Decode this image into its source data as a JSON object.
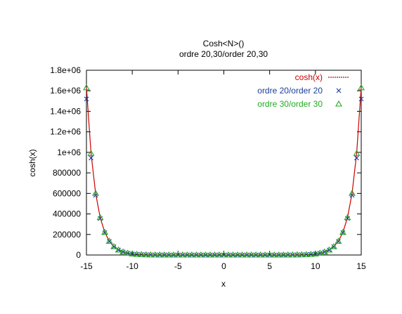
{
  "chart_data": {
    "type": "line",
    "title": "Cosh<N>()",
    "subtitle": "ordre 20,30/order 20,30",
    "xlabel": "x",
    "ylabel": "cosh(x)",
    "xlim": [
      -15,
      15
    ],
    "ylim": [
      0,
      1800000
    ],
    "xticks": [
      -15,
      -10,
      -5,
      0,
      5,
      10,
      15
    ],
    "xtick_labels": [
      "-15",
      "-10",
      "-5",
      "0",
      "5",
      "10",
      "15"
    ],
    "yticks": [
      0,
      200000,
      400000,
      600000,
      800000,
      1000000,
      1200000,
      1400000,
      1600000,
      1800000
    ],
    "ytick_labels": [
      "0",
      "200000",
      "400000",
      "600000",
      "800000",
      "1e+06",
      "1.2e+06",
      "1.4e+06",
      "1.6e+06",
      "1.8e+06"
    ],
    "grid": false,
    "legend_position": "top-right",
    "series": [
      {
        "name": "cosh(x)",
        "style": "line",
        "color": "#cc0000",
        "x": [
          -15,
          -14.5,
          -14,
          -13.5,
          -13,
          -12.5,
          -12,
          -11.5,
          -11,
          -10.5,
          -10,
          -9.5,
          -9,
          -8,
          -7,
          -6,
          -5,
          -4,
          -3,
          -2,
          -1,
          0,
          1,
          2,
          3,
          4,
          5,
          6,
          7,
          8,
          9,
          9.5,
          10,
          10.5,
          11,
          11.5,
          12,
          12.5,
          13,
          13.5,
          14,
          14.5,
          15
        ],
        "y": [
          1634508,
          991380,
          601302,
          364708,
          221206,
          134170,
          81377,
          49358,
          29937,
          18157,
          11013,
          6680,
          4052,
          1490,
          548,
          202,
          74,
          27,
          10,
          4,
          2,
          1,
          2,
          4,
          10,
          27,
          74,
          202,
          548,
          1490,
          4052,
          6680,
          11013,
          18157,
          29937,
          49358,
          81377,
          134170,
          221206,
          364708,
          601302,
          991380,
          1634508
        ]
      },
      {
        "name": "ordre 20/order 20",
        "style": "points",
        "marker": "x",
        "color": "#1a3d99",
        "x": [
          -15,
          -14.5,
          -14,
          -13.5,
          -13,
          -12.5,
          -12,
          -11.5,
          -11,
          -10.5,
          -10,
          -9.5,
          -9,
          -8.5,
          -8,
          -7.5,
          -7,
          -6.5,
          -6,
          -5.5,
          -5,
          -4.5,
          -4,
          -3.5,
          -3,
          -2.5,
          -2,
          -1.5,
          -1,
          -0.5,
          0,
          0.5,
          1,
          1.5,
          2,
          2.5,
          3,
          3.5,
          4,
          4.5,
          5,
          5.5,
          6,
          6.5,
          7,
          7.5,
          8,
          8.5,
          9,
          9.5,
          10,
          10.5,
          11,
          11.5,
          12,
          12.5,
          13,
          13.5,
          14,
          14.5,
          15
        ],
        "y": [
          1520000,
          945000,
          582000,
          356000,
          217000,
          132000,
          80400,
          48900,
          29700,
          18060,
          10980,
          6670,
          4050,
          2460,
          1490,
          905,
          548,
          333,
          202,
          122,
          74,
          45,
          27,
          17,
          10,
          6,
          4,
          2,
          2,
          1,
          1,
          1,
          2,
          2,
          4,
          6,
          10,
          17,
          27,
          45,
          74,
          122,
          202,
          333,
          548,
          905,
          1490,
          2460,
          4050,
          6670,
          10980,
          18060,
          29700,
          48900,
          80400,
          132000,
          217000,
          356000,
          582000,
          945000,
          1520000
        ]
      },
      {
        "name": "ordre 30/order 30",
        "style": "points",
        "marker": "triangle",
        "color": "#22aa22",
        "x": [
          -15,
          -14.5,
          -14,
          -13.5,
          -13,
          -12.5,
          -12,
          -11.5,
          -11,
          -10.5,
          -10,
          -9.5,
          -9,
          -8.5,
          -8,
          -7.5,
          -7,
          -6.5,
          -6,
          -5.5,
          -5,
          -4.5,
          -4,
          -3.5,
          -3,
          -2.5,
          -2,
          -1.5,
          -1,
          -0.5,
          0,
          0.5,
          1,
          1.5,
          2,
          2.5,
          3,
          3.5,
          4,
          4.5,
          5,
          5.5,
          6,
          6.5,
          7,
          7.5,
          8,
          8.5,
          9,
          9.5,
          10,
          10.5,
          11,
          11.5,
          12,
          12.5,
          13,
          13.5,
          14,
          14.5,
          15
        ],
        "y": [
          1630000,
          990000,
          601000,
          364700,
          221200,
          134170,
          81377,
          49358,
          29937,
          18157,
          11013,
          6680,
          4052,
          2457,
          1490,
          904,
          548,
          333,
          202,
          122,
          74,
          45,
          27,
          17,
          10,
          6,
          4,
          2,
          2,
          1,
          1,
          1,
          2,
          2,
          4,
          6,
          10,
          17,
          27,
          45,
          74,
          122,
          202,
          333,
          548,
          904,
          1490,
          2457,
          4052,
          6680,
          11013,
          18157,
          29937,
          49358,
          81377,
          134170,
          221200,
          364700,
          601000,
          990000,
          1630000
        ]
      }
    ]
  }
}
